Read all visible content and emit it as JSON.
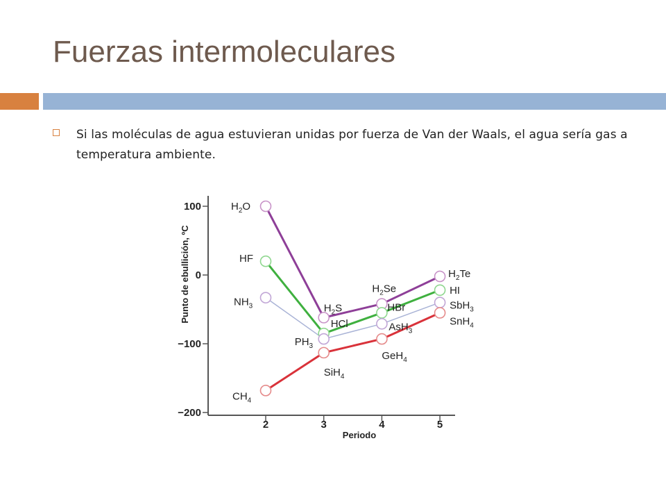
{
  "slide": {
    "title": "Fuerzas intermoleculares",
    "bullet": "Si las moléculas de agua estuvieran unidas por fuerza de Van der Waals, el agua sería gas a temperatura ambiente."
  },
  "colors": {
    "title": "#6e5a4e",
    "band_orange": "#d8813f",
    "band_blue": "#97b3d5",
    "bullet_icon": "#d8813f"
  },
  "chart_data": {
    "type": "line",
    "title": "",
    "xlabel": "Periodo",
    "ylabel": "Punto de ebullición, ºC",
    "x": [
      2,
      3,
      4,
      5
    ],
    "xlim": [
      1.3,
      5.3
    ],
    "ylim": [
      -200,
      110
    ],
    "yticks": [
      100,
      0,
      -100,
      -200
    ],
    "ytick_labels": [
      "100",
      "0",
      "−100",
      "−200"
    ],
    "xticks": [
      2,
      3,
      4,
      5
    ],
    "xtick_labels": [
      "2",
      "3",
      "4",
      "5"
    ],
    "grid": false,
    "series": [
      {
        "color": "#8e3f98",
        "labels": [
          {
            "base": "H",
            "sub": "2",
            "post": "O"
          },
          {
            "base": "H",
            "sub": "2",
            "post": "S"
          },
          {
            "base": "H",
            "sub": "2",
            "post": "Se"
          },
          {
            "base": "H",
            "sub": "2",
            "post": "Te"
          }
        ],
        "values": [
          100,
          -62,
          -42,
          -2
        ]
      },
      {
        "color": "#3fb03f",
        "labels": [
          {
            "base": "HF",
            "sub": "",
            "post": ""
          },
          {
            "base": "HCl",
            "sub": "",
            "post": ""
          },
          {
            "base": "HBr",
            "sub": "",
            "post": ""
          },
          {
            "base": "HI",
            "sub": "",
            "post": ""
          }
        ],
        "values": [
          20,
          -85,
          -55,
          -22
        ]
      },
      {
        "color": "#a9b3d6",
        "labels": [
          {
            "base": "NH",
            "sub": "3",
            "post": ""
          },
          {
            "base": "PH",
            "sub": "3",
            "post": ""
          },
          {
            "base": "AsH",
            "sub": "3",
            "post": ""
          },
          {
            "base": "SbH",
            "sub": "3",
            "post": ""
          }
        ],
        "values": [
          -33,
          -93,
          -71,
          -40
        ]
      },
      {
        "color": "#d9323a",
        "labels": [
          {
            "base": "CH",
            "sub": "4",
            "post": ""
          },
          {
            "base": "SiH",
            "sub": "4",
            "post": ""
          },
          {
            "base": "GeH",
            "sub": "4",
            "post": ""
          },
          {
            "base": "SnH",
            "sub": "4",
            "post": ""
          }
        ],
        "values": [
          -168,
          -113,
          -93,
          -55
        ]
      }
    ],
    "marker_edge_colors": [
      "#c893c8",
      "#8fd78f",
      "#c1a6d6",
      "#e58a8a"
    ]
  }
}
